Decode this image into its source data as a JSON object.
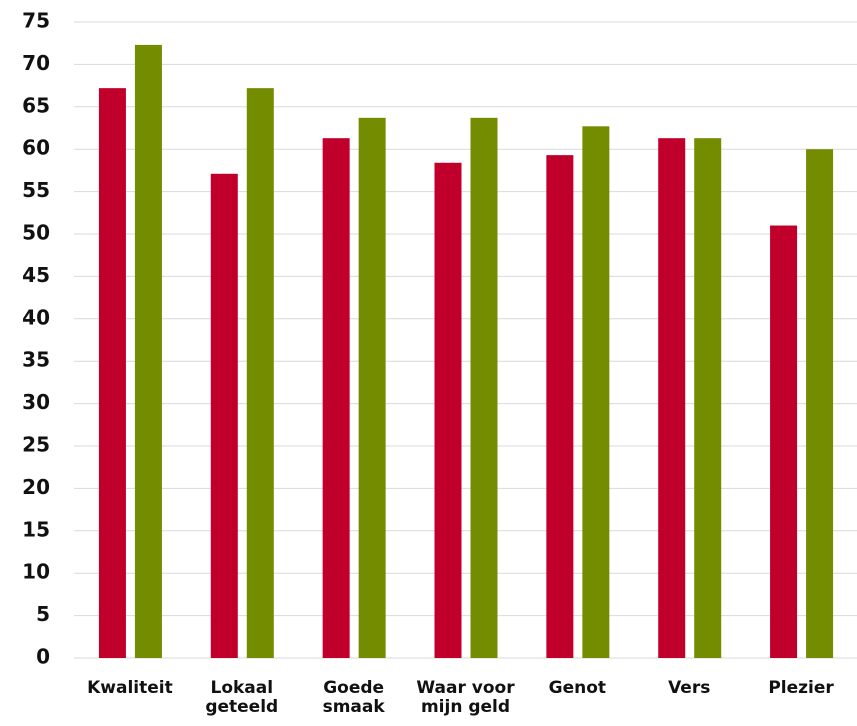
{
  "chart_data": {
    "type": "bar",
    "categories": [
      "Kwaliteit",
      "Lokaal\ngeteeld",
      "Goede\nsmaak",
      "Waar voor\nmijn geld",
      "Genot",
      "Vers",
      "Plezier"
    ],
    "series": [
      {
        "color": "#c0002a",
        "values": [
          67.2,
          57.1,
          61.3,
          58.4,
          59.3,
          61.3,
          51.0
        ]
      },
      {
        "color": "#748c00",
        "values": [
          72.3,
          67.2,
          63.7,
          63.7,
          62.7,
          61.3,
          60.0
        ]
      }
    ],
    "ylim": [
      0,
      75
    ],
    "yticks": [
      0,
      5,
      10,
      15,
      20,
      25,
      30,
      35,
      40,
      45,
      50,
      55,
      60,
      65,
      70,
      75
    ],
    "grid": true
  }
}
